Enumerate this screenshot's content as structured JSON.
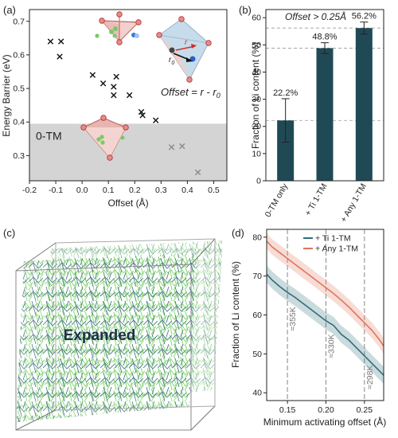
{
  "panels": {
    "a": "(a)",
    "b": "(b)",
    "c": "(c)",
    "d": "(d)"
  },
  "chart_data": [
    {
      "type": "scatter",
      "panel": "a",
      "xlabel": "Offset (Å)",
      "ylabel": "Energy Barrier (eV)",
      "xlim": [
        -0.2,
        0.55
      ],
      "ylim": [
        0.225,
        0.735
      ],
      "xticks": [
        "-0.2",
        "-0.1",
        "0.0",
        "0.1",
        "0.2",
        "0.3",
        "0.4",
        "0.5"
      ],
      "xtick_values": [
        -0.2,
        -0.1,
        0.0,
        0.1,
        0.2,
        0.3,
        0.4,
        0.5
      ],
      "yticks": [
        "0.3",
        "0.4",
        "0.5",
        "0.6",
        "0.7"
      ],
      "ytick_values": [
        0.3,
        0.4,
        0.5,
        0.6,
        0.7
      ],
      "shaded_band": [
        0.225,
        0.395
      ],
      "band_label": "0-TM",
      "annotation": "Offset = r - r",
      "annotation_sub": "0",
      "inset_labels": {
        "r": "r",
        "r0": "r",
        "r0_sub": "0"
      },
      "series": [
        {
          "color": "#111111",
          "points": [
            [
              -0.12,
              0.64
            ],
            [
              -0.08,
              0.64
            ],
            [
              -0.085,
              0.595
            ],
            [
              0.04,
              0.54
            ],
            [
              0.08,
              0.515
            ],
            [
              0.12,
              0.505
            ],
            [
              0.13,
              0.535
            ],
            [
              0.12,
              0.48
            ],
            [
              0.18,
              0.48
            ],
            [
              0.225,
              0.43
            ],
            [
              0.23,
              0.42
            ],
            [
              0.28,
              0.405
            ]
          ]
        },
        {
          "color": "#8a8a8a",
          "points": [
            [
              0.34,
              0.325
            ],
            [
              0.38,
              0.328
            ],
            [
              0.44,
              0.25
            ]
          ]
        }
      ]
    },
    {
      "type": "bar",
      "panel": "b",
      "ylabel": "Fraction of Li content (%)",
      "ylim": [
        0,
        63
      ],
      "yticks": [
        "0",
        "10",
        "20",
        "30",
        "40",
        "50",
        "60"
      ],
      "ytick_values": [
        0,
        10,
        20,
        30,
        40,
        50,
        60
      ],
      "categories": [
        "0-TM only",
        "+ Ti 1-TM",
        "+ Any 1-TM"
      ],
      "values": [
        22.2,
        48.8,
        56.2
      ],
      "errors": [
        8.0,
        2.0,
        2.2
      ],
      "value_labels": [
        "22.2%",
        "48.8%",
        "56.2%"
      ],
      "reference_lines": [
        22.2,
        48.8,
        56.2
      ],
      "annotation": "Offset > 0.25Å",
      "bar_color": "#1f4a55"
    },
    {
      "type": "line",
      "panel": "d",
      "xlabel": "Minimum activating offset (Å)",
      "ylabel": "Fraction of Li content (%)",
      "xlim": [
        0.123,
        0.275
      ],
      "ylim": [
        38,
        82
      ],
      "xticks": [
        "0.15",
        "0.20",
        "0.25"
      ],
      "xtick_values": [
        0.15,
        0.2,
        0.25
      ],
      "yticks": [
        "40",
        "50",
        "60",
        "70",
        "80"
      ],
      "ytick_values": [
        40,
        50,
        60,
        70,
        80
      ],
      "vlines": [
        {
          "x": 0.15,
          "label": "≈355K"
        },
        {
          "x": 0.2,
          "label": "≈330K"
        },
        {
          "x": 0.25,
          "label": "≈298K"
        }
      ],
      "series": [
        {
          "name": "+ Ti 1-TM",
          "color": "#2e6e78",
          "band": 2.2,
          "x": [
            0.123,
            0.13,
            0.14,
            0.15,
            0.16,
            0.17,
            0.18,
            0.19,
            0.2,
            0.21,
            0.22,
            0.23,
            0.24,
            0.25,
            0.26,
            0.27,
            0.275
          ],
          "values": [
            70.5,
            69,
            67.3,
            65.8,
            64.5,
            63,
            61.5,
            60,
            58.5,
            57.3,
            55,
            53.5,
            51.5,
            49.5,
            47.5,
            45.5,
            44.5
          ]
        },
        {
          "name": "+ Any 1-TM",
          "color": "#e0745c",
          "band": 2.0,
          "x": [
            0.123,
            0.13,
            0.14,
            0.15,
            0.16,
            0.17,
            0.18,
            0.19,
            0.2,
            0.21,
            0.22,
            0.23,
            0.24,
            0.25,
            0.26,
            0.27,
            0.275
          ],
          "values": [
            79,
            77.5,
            76,
            74.5,
            73,
            71.5,
            70,
            68.5,
            67,
            65.5,
            63.8,
            62,
            60,
            58,
            56,
            53.5,
            52
          ]
        }
      ]
    }
  ],
  "panel_c": {
    "label": "Expanded"
  }
}
